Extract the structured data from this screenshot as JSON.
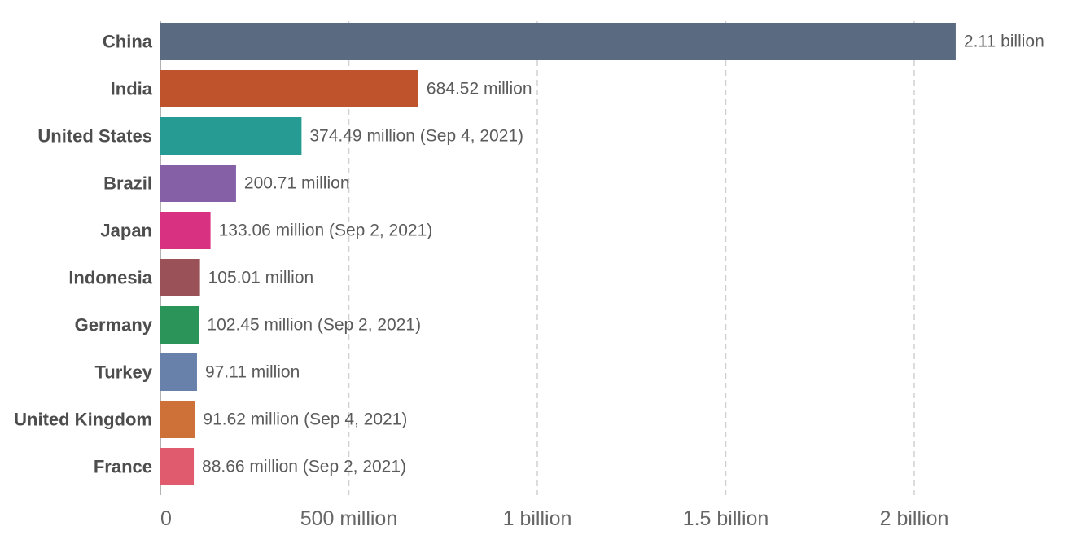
{
  "chart_data": {
    "type": "bar",
    "orientation": "horizontal",
    "title": "",
    "xlabel": "",
    "ylabel": "",
    "xlim": [
      0,
      2300000000
    ],
    "grid": "vertical-dashed",
    "legend": "none",
    "categories": [
      "China",
      "India",
      "United States",
      "Brazil",
      "Japan",
      "Indonesia",
      "Germany",
      "Turkey",
      "United Kingdom",
      "France"
    ],
    "values": [
      2110000000,
      684520000,
      374490000,
      200710000,
      133060000,
      105010000,
      102450000,
      97110000,
      91620000,
      88660000
    ],
    "value_labels": [
      "2.11 billion",
      "684.52 million",
      "374.49 million (Sep 4, 2021)",
      "200.71 million",
      "133.06 million (Sep 2, 2021)",
      "105.01 million",
      "102.45 million (Sep 2, 2021)",
      "97.11 million",
      "91.62 million (Sep 4, 2021)",
      "88.66 million (Sep 2, 2021)"
    ],
    "colors": [
      "#5a6a80",
      "#bf542c",
      "#259b94",
      "#8660a6",
      "#d83181",
      "#9a5158",
      "#2a9459",
      "#6781ab",
      "#cd7139",
      "#e05b6e"
    ],
    "ticks": [
      {
        "value": 0,
        "label": "0"
      },
      {
        "value": 500000000,
        "label": "500 million"
      },
      {
        "value": 1000000000,
        "label": "1 billion"
      },
      {
        "value": 1500000000,
        "label": "1.5 billion"
      },
      {
        "value": 2000000000,
        "label": "2 billion"
      }
    ]
  }
}
